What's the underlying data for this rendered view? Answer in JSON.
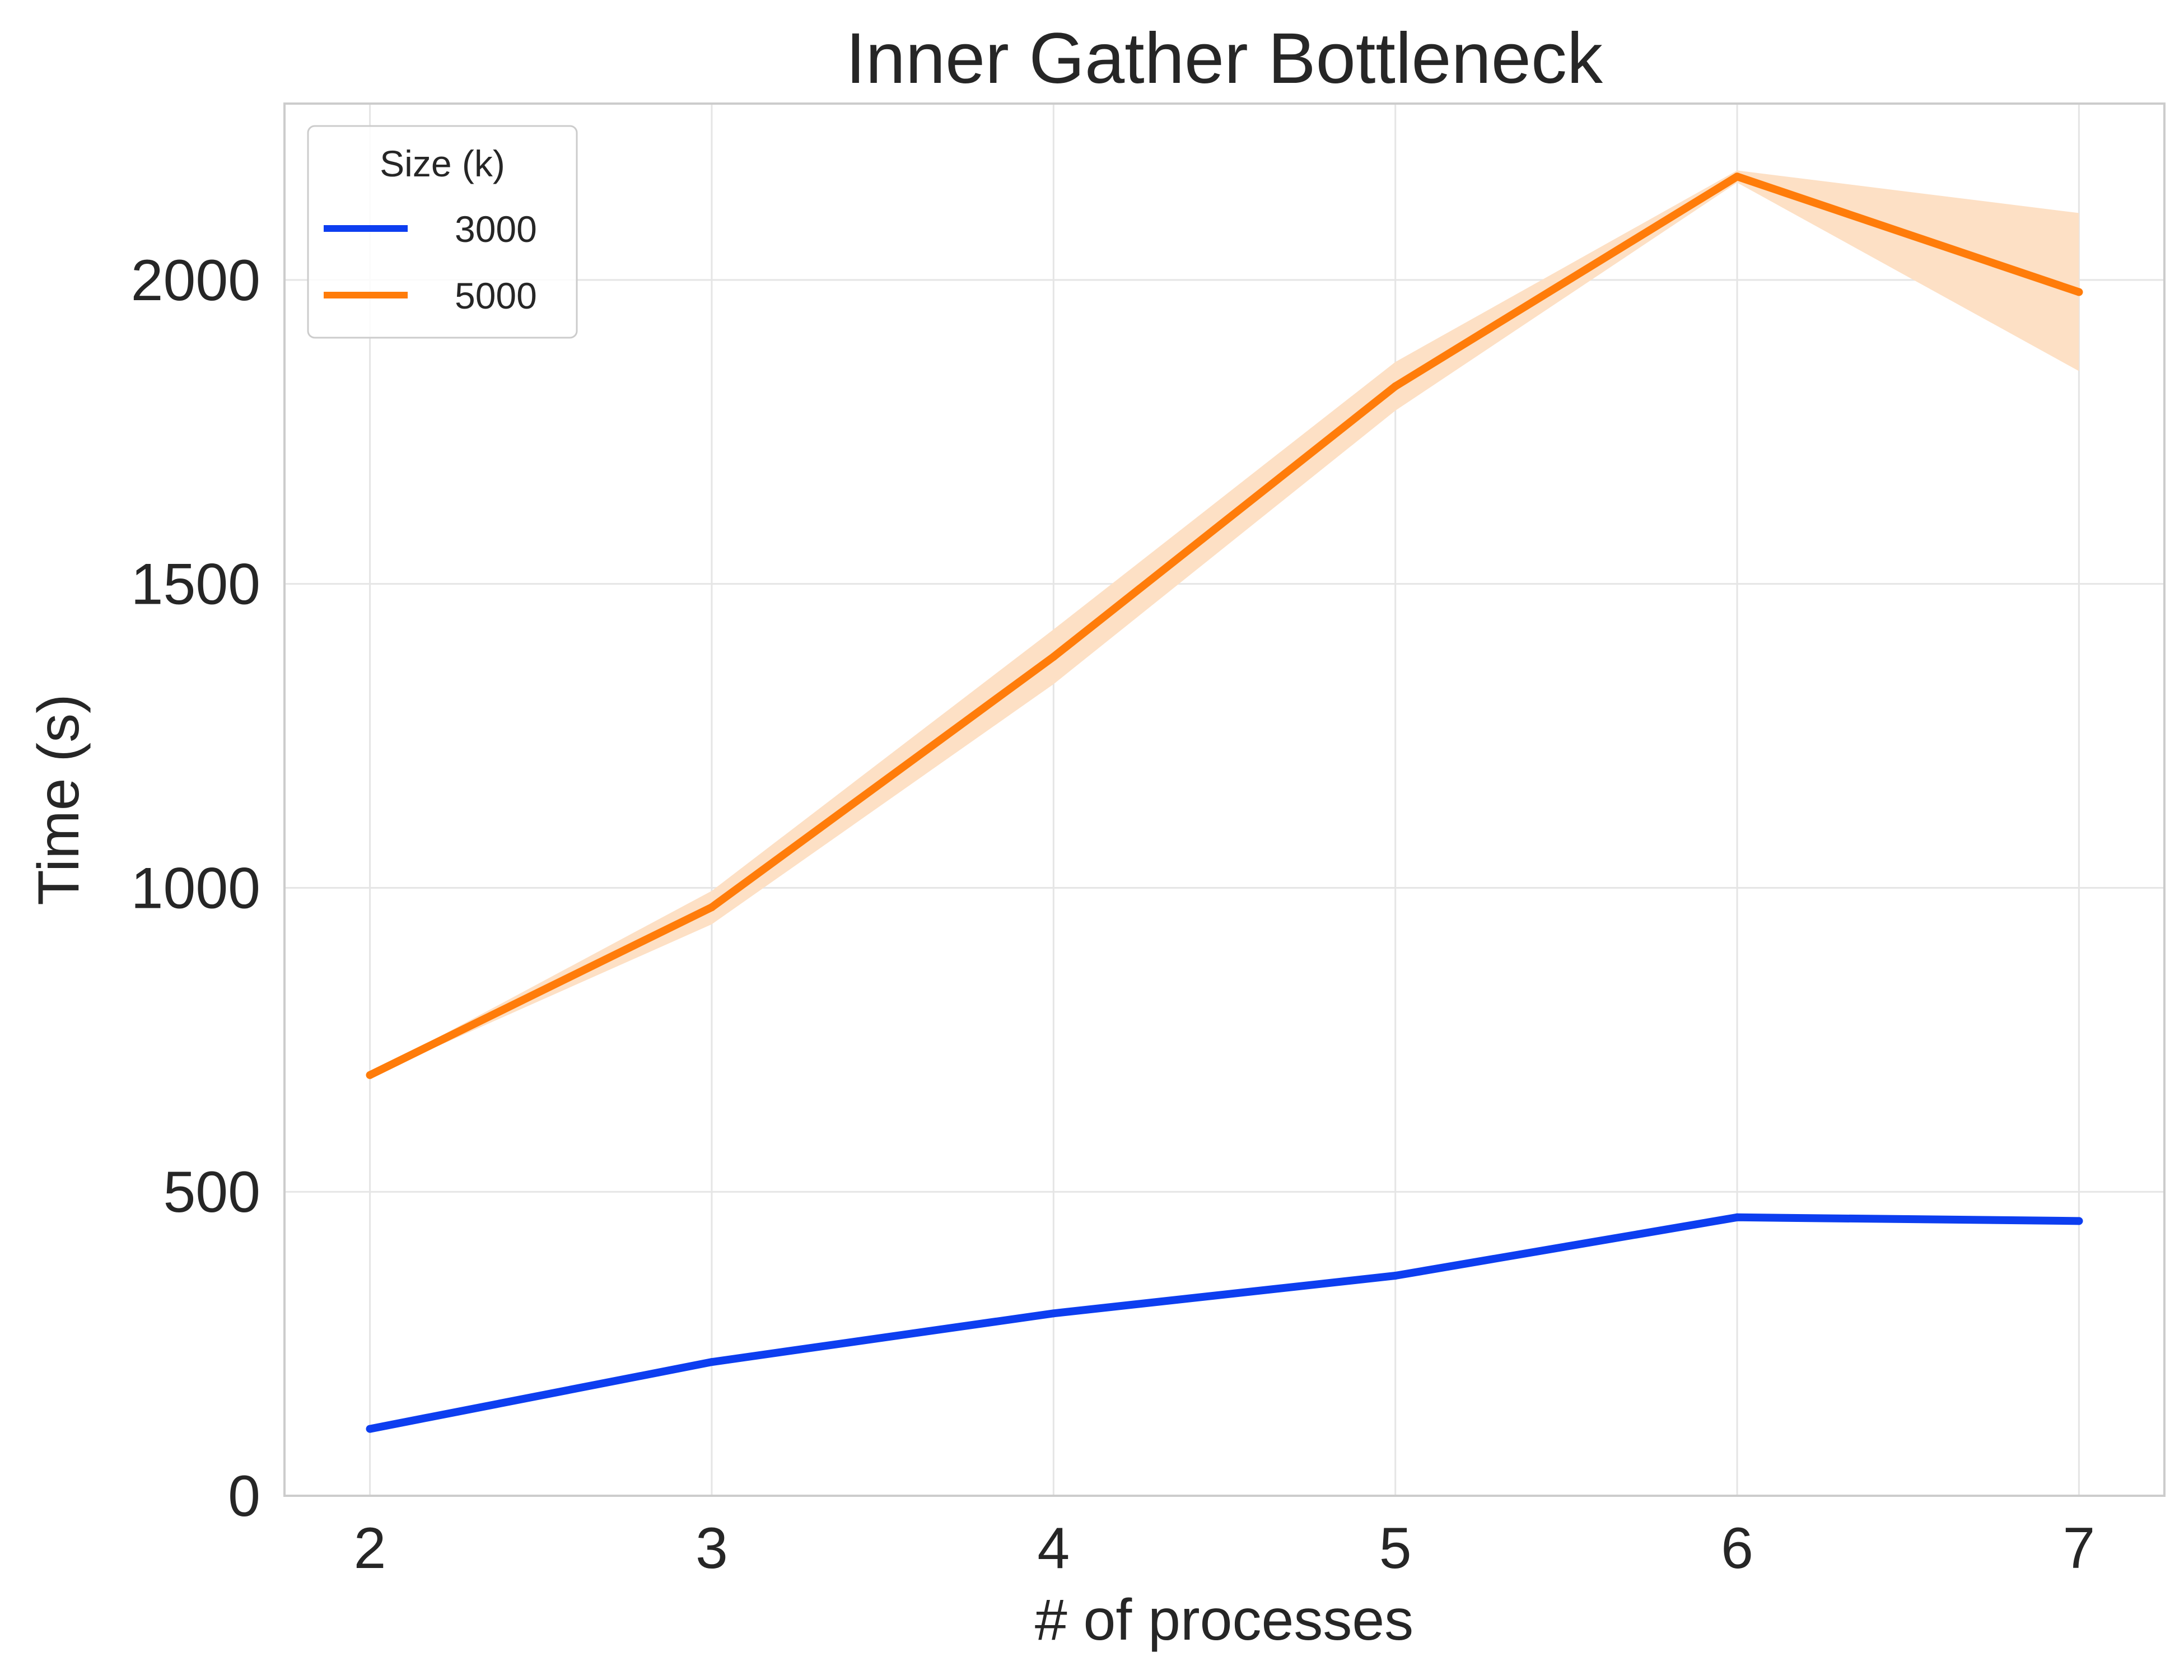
{
  "chart_data": {
    "type": "line",
    "title": "Inner Gather Bottleneck",
    "xlabel": "# of processes",
    "ylabel": "Time (s)",
    "x": [
      2,
      3,
      4,
      5,
      6,
      7
    ],
    "xticks": [
      "2",
      "3",
      "4",
      "5",
      "6",
      "7"
    ],
    "yticks": [
      "0",
      "500",
      "1000",
      "1500",
      "2000"
    ],
    "xlim": [
      1.75,
      7.25
    ],
    "ylim": [
      0,
      2290
    ],
    "grid": true,
    "legend": {
      "title": "Size (k)",
      "placement": "top-left"
    },
    "series": [
      {
        "name": "3000",
        "color": "#0d3ef0",
        "values": [
          110,
          220,
          300,
          362,
          458,
          452
        ],
        "band_lower": [
          110,
          220,
          300,
          362,
          458,
          452
        ],
        "band_upper": [
          110,
          220,
          300,
          362,
          458,
          452
        ]
      },
      {
        "name": "5000",
        "color": "#ff7c0a",
        "band_color": "#fde0c5",
        "values": [
          692,
          968,
          1380,
          1825,
          2170,
          1980
        ],
        "band_lower": [
          690,
          940,
          1335,
          1785,
          2160,
          1850
        ],
        "band_upper": [
          694,
          995,
          1425,
          1865,
          2180,
          2110
        ]
      }
    ]
  }
}
